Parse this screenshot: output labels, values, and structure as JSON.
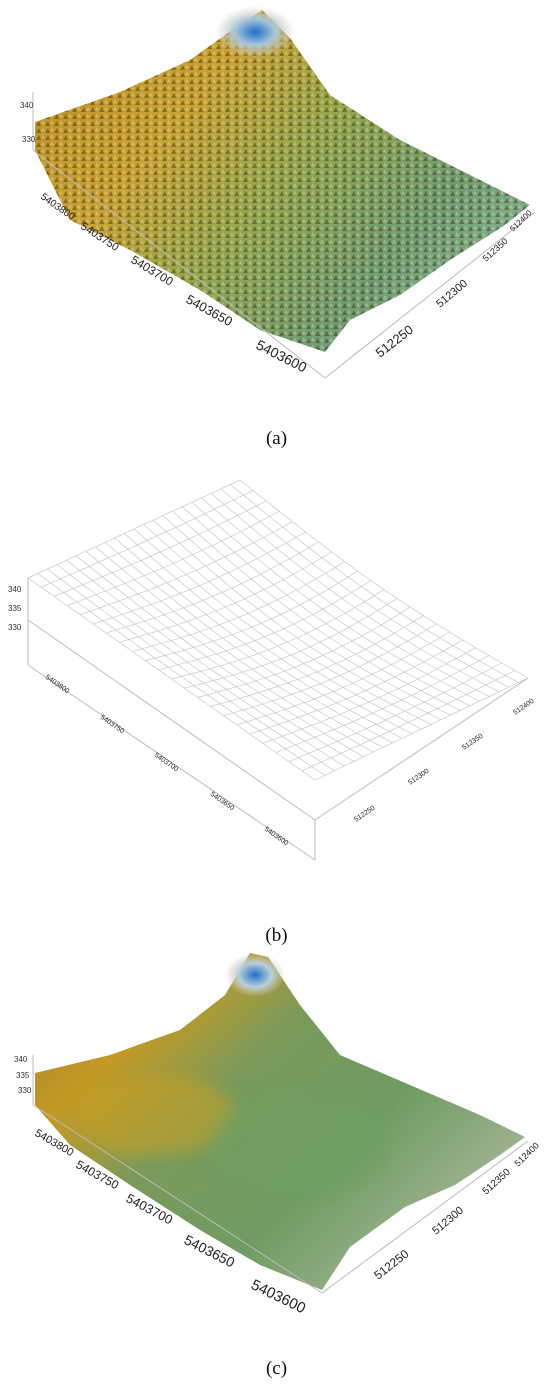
{
  "panels": [
    {
      "caption": "(a)",
      "surface": "detailed-dtm",
      "z_ticks": [
        "340",
        "330"
      ],
      "y_ticks": [
        "5403800",
        "5403750",
        "5403700",
        "5403650",
        "5403600"
      ],
      "x_ticks": [
        "512250",
        "512300",
        "512350",
        "512400"
      ]
    },
    {
      "caption": "(b)",
      "surface": "wireframe-mesh",
      "z_ticks": [
        "340",
        "335",
        "330"
      ],
      "y_ticks": [
        "5403800",
        "5403750",
        "5403700",
        "5403650",
        "5403600"
      ],
      "x_ticks": [
        "512250",
        "512300",
        "512350",
        "512400"
      ]
    },
    {
      "caption": "(c)",
      "surface": "smoothed-colored-surface",
      "z_ticks": [
        "340",
        "335",
        "330"
      ],
      "y_ticks": [
        "5403800",
        "5403750",
        "5403700",
        "5403650",
        "5403600"
      ],
      "x_ticks": [
        "512250",
        "512300",
        "512350",
        "512400"
      ]
    }
  ],
  "colors": {
    "peak_blue": "#1f6fc9",
    "ochre": "#c9a233",
    "green": "#6f9c62",
    "mesh_line": "#c8c8c8",
    "axis_line": "#bbbbbb"
  }
}
